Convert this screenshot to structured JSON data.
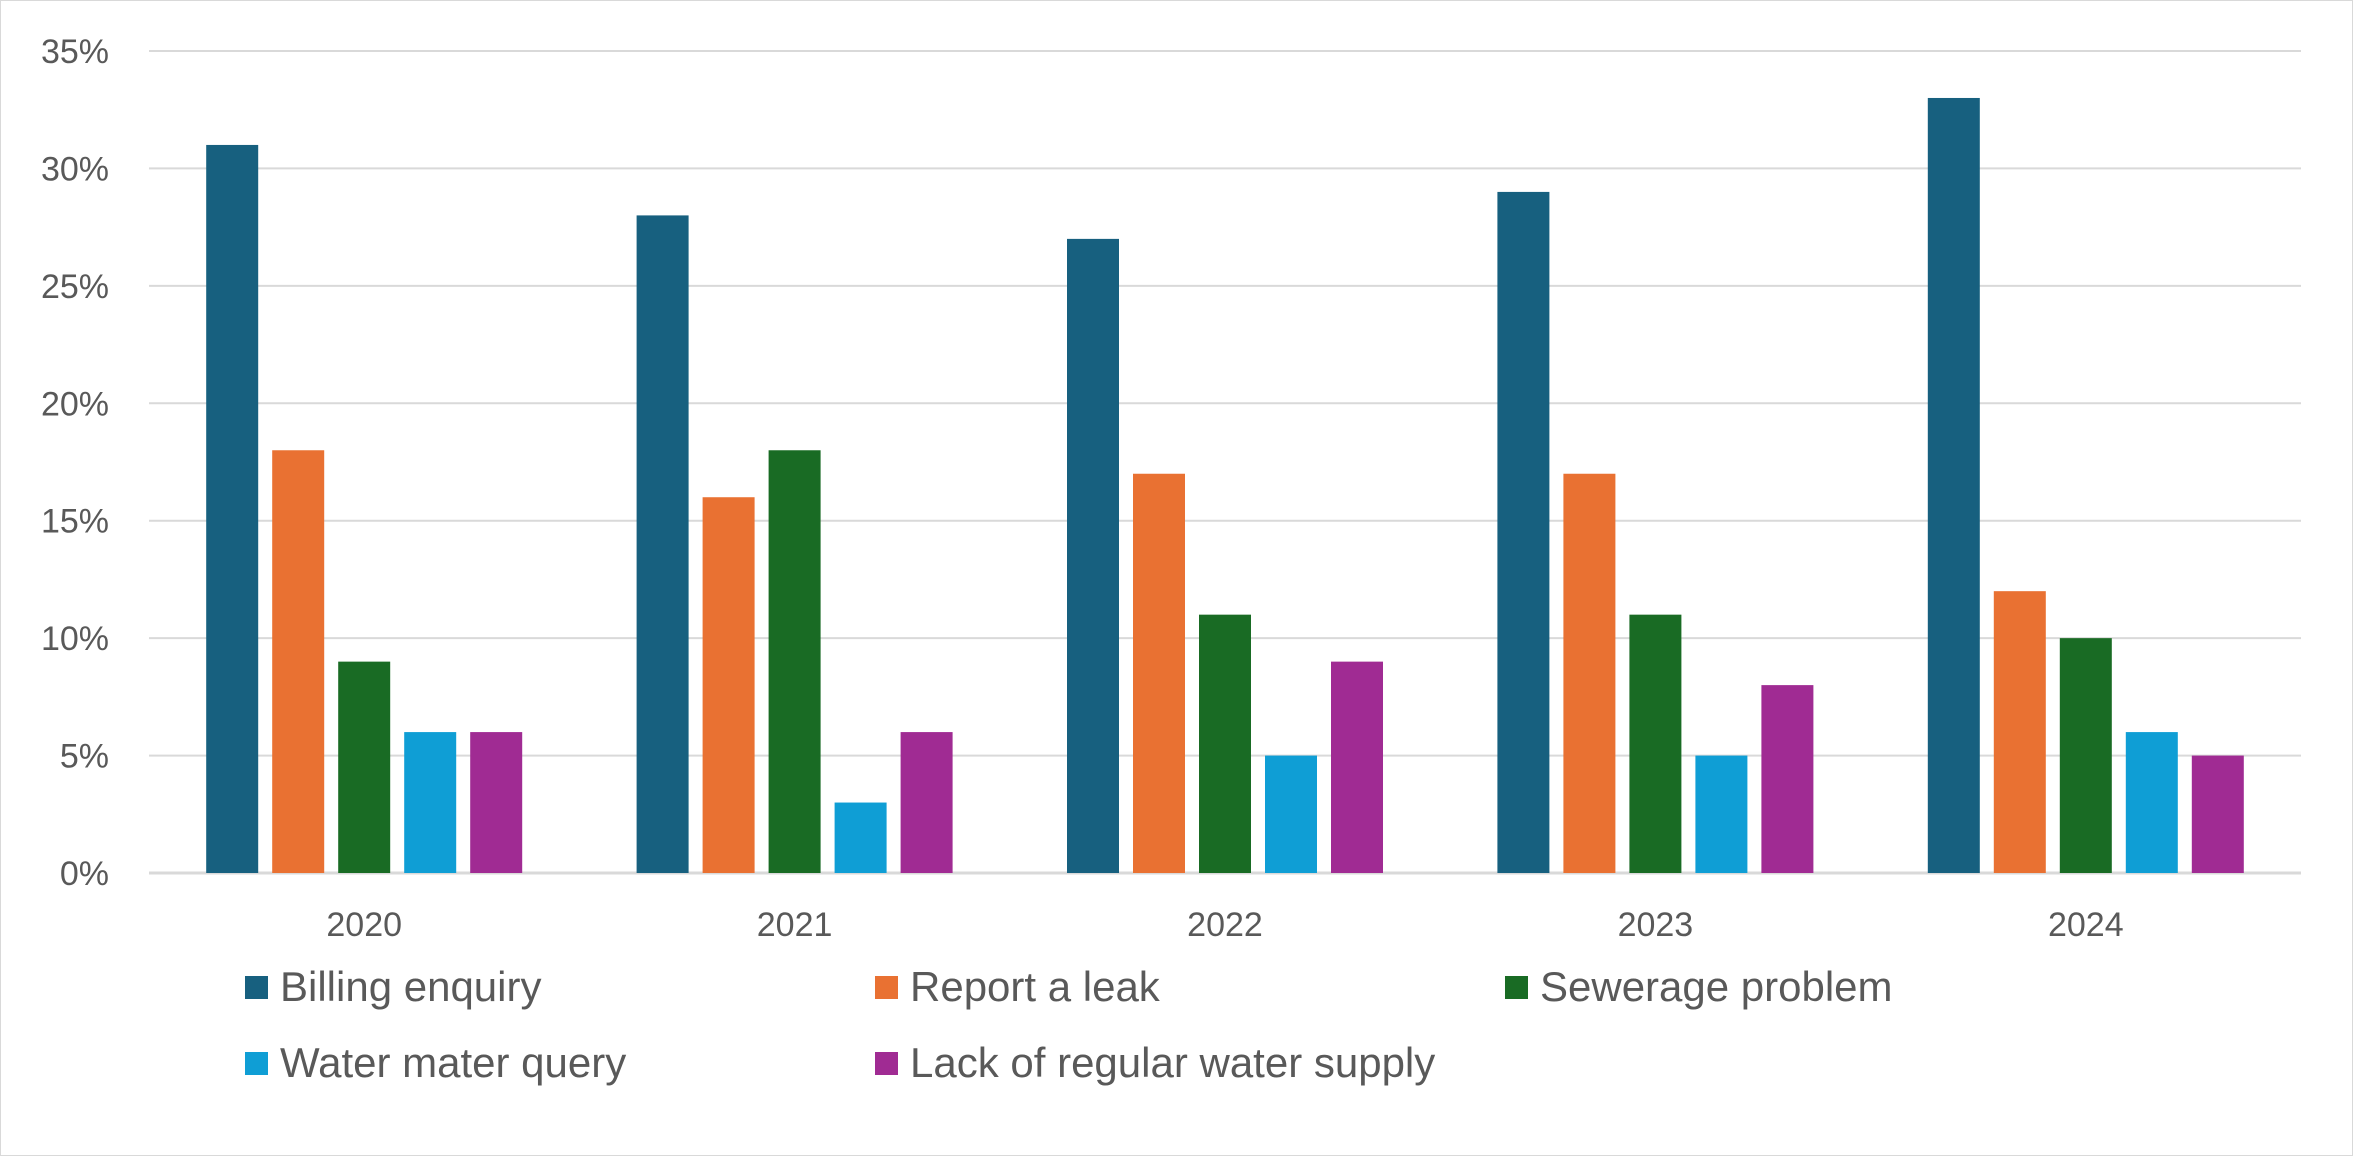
{
  "chart_data": {
    "type": "bar",
    "categories": [
      "2020",
      "2021",
      "2022",
      "2023",
      "2024"
    ],
    "series": [
      {
        "name": "Billing enquiry",
        "color": "#17607f",
        "values": [
          31,
          28,
          27,
          29,
          33
        ]
      },
      {
        "name": "Report a leak",
        "color": "#e97132",
        "values": [
          18,
          16,
          17,
          17,
          12
        ]
      },
      {
        "name": "Sewerage problem",
        "color": "#196b24",
        "values": [
          9,
          18,
          11,
          11,
          10
        ]
      },
      {
        "name": "Water mater query",
        "color": "#0f9ed5",
        "values": [
          6,
          3,
          5,
          5,
          6
        ]
      },
      {
        "name": "Lack of regular water supply",
        "color": "#a02b93",
        "values": [
          6,
          6,
          9,
          8,
          5
        ]
      }
    ],
    "y_ticks": [
      "0%",
      "5%",
      "10%",
      "15%",
      "20%",
      "25%",
      "30%",
      "35%"
    ],
    "ylim": [
      0,
      35
    ],
    "y_unit": "%",
    "grid": true,
    "legend_position": "bottom",
    "title": "",
    "xlabel": "",
    "ylabel": ""
  }
}
